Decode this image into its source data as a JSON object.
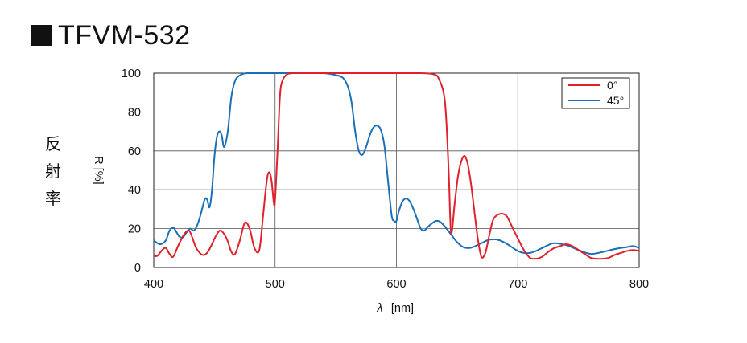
{
  "title": "TFVM-532",
  "y_label_jp": [
    "反",
    "射",
    "率"
  ],
  "chart_data": {
    "type": "line",
    "title": "TFVM-532",
    "xlabel_symbol": "λ",
    "xlabel_unit": "[nm]",
    "ylabel": "R [%]",
    "xlim": [
      400,
      800
    ],
    "ylim": [
      0,
      100
    ],
    "xticks": [
      400,
      500,
      600,
      700,
      800
    ],
    "yticks": [
      0,
      20,
      40,
      60,
      80,
      100
    ],
    "grid": true,
    "legend_position": "top-right",
    "series": [
      {
        "name": "0°",
        "color": "#e0202a",
        "x": [
          400,
          403,
          407,
          410,
          413,
          416,
          420,
          425,
          429,
          432,
          435,
          440,
          444,
          448,
          451,
          455,
          460,
          464,
          467,
          471,
          475,
          479,
          483,
          487,
          490,
          493,
          495,
          497,
          499,
          500,
          502,
          504,
          506,
          510,
          515,
          520,
          530,
          540,
          550,
          560,
          570,
          580,
          590,
          600,
          610,
          620,
          630,
          635,
          640,
          643,
          645,
          648,
          651,
          655,
          658,
          661,
          664,
          667,
          670,
          673,
          675,
          677,
          680,
          685,
          690,
          693,
          696,
          700,
          705,
          710,
          715,
          720,
          725,
          730,
          735,
          740,
          745,
          750,
          755,
          760,
          765,
          770,
          775,
          780,
          785,
          790,
          795,
          800
        ],
        "values": [
          6,
          6,
          9,
          10,
          7,
          5.5,
          11,
          17,
          19,
          15,
          10,
          6.5,
          7.5,
          12,
          16,
          19,
          15,
          8,
          7,
          14,
          23,
          20,
          10,
          9,
          26,
          44,
          49,
          45,
          33,
          35,
          60,
          88,
          96,
          99.5,
          100,
          100,
          100,
          100,
          100,
          100,
          100,
          100,
          100,
          100,
          100,
          100,
          99.5,
          97,
          85,
          50,
          18,
          33,
          48,
          57,
          55,
          45,
          30,
          15,
          5.5,
          7,
          12,
          18,
          25,
          27.5,
          27,
          24,
          20,
          15,
          9,
          5,
          4.5,
          5.5,
          8,
          10,
          11,
          12,
          11,
          9,
          7,
          5,
          4.5,
          4.5,
          5,
          6.5,
          7.5,
          8.5,
          9,
          8.5
        ]
      },
      {
        "name": "45°",
        "color": "#1a6fb8",
        "x": [
          400,
          403,
          406,
          410,
          413,
          416,
          418,
          421,
          424,
          427,
          430,
          433,
          436,
          439,
          442,
          444,
          446,
          448,
          450,
          452,
          454,
          456,
          458,
          461,
          464,
          467,
          470,
          473,
          476,
          480,
          490,
          500,
          520,
          540,
          550,
          556,
          560,
          563,
          566,
          569,
          572,
          575,
          578,
          581,
          584,
          587,
          590,
          593,
          596,
          598,
          600,
          602,
          605,
          608,
          611,
          614,
          617,
          620,
          623,
          626,
          630,
          633,
          636,
          640,
          645,
          650,
          655,
          660,
          665,
          670,
          675,
          680,
          685,
          690,
          695,
          700,
          705,
          710,
          715,
          720,
          725,
          730,
          740,
          750,
          760,
          770,
          780,
          790,
          795,
          800
        ],
        "values": [
          14,
          12.5,
          12,
          14,
          19,
          20.5,
          19,
          16,
          15.5,
          18,
          20,
          19,
          22,
          28,
          35,
          35,
          31,
          40,
          57,
          67,
          70,
          68,
          62,
          70,
          88,
          96,
          98.5,
          99.5,
          100,
          100,
          100,
          100,
          100,
          100,
          99,
          97.5,
          93,
          85,
          70,
          60,
          58,
          62,
          68,
          72,
          73,
          71,
          63,
          45,
          27,
          24,
          24,
          29,
          34,
          35.5,
          34,
          30,
          25,
          20,
          19,
          21,
          23,
          24,
          23.5,
          21,
          17,
          13,
          10.5,
          10,
          11,
          12.5,
          14,
          14.5,
          14,
          12.5,
          10.5,
          8.5,
          7.5,
          7.5,
          8.5,
          10,
          11.5,
          12.5,
          11.5,
          9,
          7,
          8,
          9.5,
          10.5,
          11,
          10
        ]
      }
    ]
  }
}
